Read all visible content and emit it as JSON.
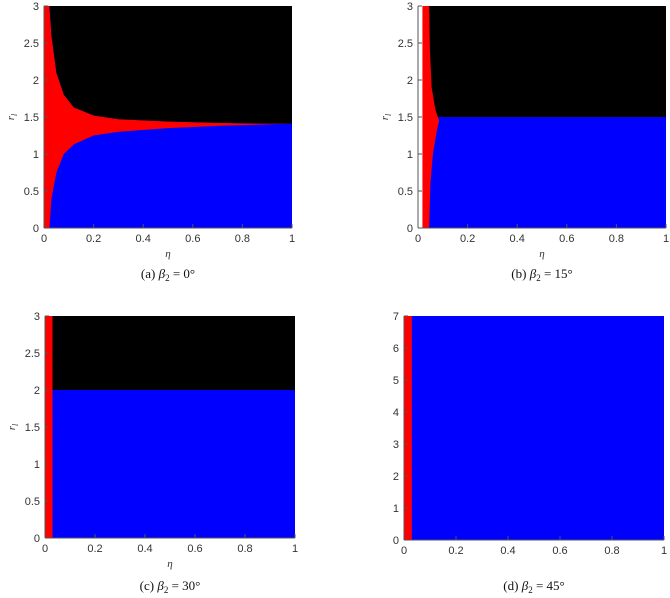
{
  "colors": {
    "black_region": "#000000",
    "red_region": "#ff0000",
    "blue_region": "#0000ff",
    "axis": "#555555"
  },
  "chart_data": [
    {
      "type": "heatmap",
      "caption_tag": "(a)",
      "caption_symbol": "β",
      "caption_subscript": "2",
      "caption_value": "= 0°",
      "xlabel": "η",
      "ylabel": "r",
      "ylabel_subscript": "l",
      "xlim": [
        0,
        1
      ],
      "ylim": [
        0,
        3
      ],
      "xticks": [
        "0",
        "0.2",
        "0.4",
        "0.6",
        "0.8",
        "1"
      ],
      "yticks": [
        "0",
        "0.5",
        "1",
        "1.5",
        "2",
        "2.5",
        "3"
      ],
      "regions": {
        "upper_black": "r_l above upper boundary",
        "lower_blue": "r_l below lower boundary",
        "red_band": "between boundaries"
      },
      "red_stripe_eta": [
        0,
        0.022
      ],
      "upper_boundary": {
        "eta": [
          0.022,
          0.03,
          0.05,
          0.08,
          0.12,
          0.2,
          0.3,
          0.5,
          0.7,
          0.9
        ],
        "r_l": [
          3.0,
          2.6,
          2.1,
          1.8,
          1.63,
          1.52,
          1.47,
          1.44,
          1.42,
          1.41
        ]
      },
      "lower_boundary": {
        "eta": [
          0.022,
          0.03,
          0.05,
          0.08,
          0.12,
          0.2,
          0.3,
          0.5,
          0.7,
          0.9
        ],
        "r_l": [
          0.0,
          0.4,
          0.75,
          1.0,
          1.13,
          1.25,
          1.3,
          1.35,
          1.38,
          1.4
        ]
      },
      "flat_boundary_r_l": 1.41
    },
    {
      "type": "heatmap",
      "caption_tag": "(b)",
      "caption_symbol": "β",
      "caption_subscript": "2",
      "caption_value": "= 15°",
      "xlabel": "η",
      "ylabel": "r",
      "ylabel_subscript": "l",
      "xlim": [
        0,
        1
      ],
      "ylim": [
        0,
        3
      ],
      "xticks": [
        "0",
        "0.2",
        "0.4",
        "0.6",
        "0.8",
        "1"
      ],
      "yticks": [
        "0",
        "0.5",
        "1",
        "1.5",
        "2",
        "2.5",
        "3"
      ],
      "red_stripe_eta": [
        0.018,
        0.045
      ],
      "split_r_l": 1.5,
      "bulge": {
        "r_l": [
          0,
          0.6,
          1.0,
          1.3,
          1.45,
          1.6,
          1.9,
          2.4,
          3.0
        ],
        "eta_right": [
          0.045,
          0.05,
          0.06,
          0.075,
          0.085,
          0.07,
          0.055,
          0.048,
          0.045
        ]
      }
    },
    {
      "type": "heatmap",
      "caption_tag": "(c)",
      "caption_symbol": "β",
      "caption_subscript": "2",
      "caption_value": "= 30°",
      "xlabel": "η",
      "ylabel": "r",
      "ylabel_subscript": "l",
      "xlim": [
        0,
        1
      ],
      "ylim": [
        0,
        3
      ],
      "xticks": [
        "0",
        "0.2",
        "0.4",
        "0.6",
        "0.8",
        "1"
      ],
      "yticks": [
        "0",
        "0.5",
        "1",
        "1.5",
        "2",
        "2.5",
        "3"
      ],
      "red_stripe_eta": [
        0,
        0.03
      ],
      "split_r_l": 2.0
    },
    {
      "type": "heatmap",
      "caption_tag": "(d)",
      "caption_symbol": "β",
      "caption_subscript": "2",
      "caption_value": "= 45°",
      "xlabel": "",
      "ylabel": "",
      "ylabel_subscript": "",
      "xlim": [
        0,
        1
      ],
      "ylim": [
        0,
        7
      ],
      "xticks": [
        "0",
        "0.2",
        "0.4",
        "0.6",
        "0.8",
        "1"
      ],
      "yticks": [
        "0",
        "1",
        "2",
        "3",
        "4",
        "5",
        "6",
        "7"
      ],
      "red_stripe_eta": [
        0,
        0.03
      ],
      "split_r_l": 7.0
    }
  ]
}
